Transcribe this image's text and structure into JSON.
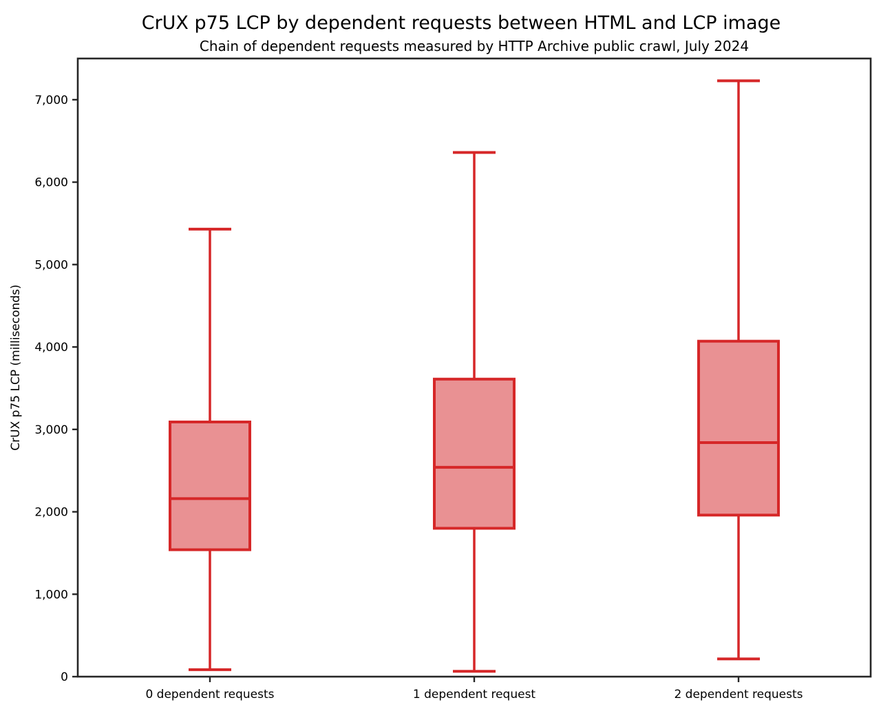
{
  "chart_data": {
    "type": "boxplot",
    "title": "CrUX p75 LCP by dependent requests between HTML and LCP image",
    "subtitle": "Chain of dependent requests measured by HTTP Archive public crawl, July 2024",
    "xlabel": "",
    "ylabel": "CrUX p75 LCP (milliseconds)",
    "ylim": [
      0,
      7500
    ],
    "grid": false,
    "legend": null,
    "yticks": [
      {
        "value": 0,
        "label": "0"
      },
      {
        "value": 1000,
        "label": "1,000"
      },
      {
        "value": 2000,
        "label": "2,000"
      },
      {
        "value": 3000,
        "label": "3,000"
      },
      {
        "value": 4000,
        "label": "4,000"
      },
      {
        "value": 5000,
        "label": "5,000"
      },
      {
        "value": 6000,
        "label": "6,000"
      },
      {
        "value": 7000,
        "label": "7,000"
      }
    ],
    "categories": [
      "0 dependent requests",
      "1 dependent request",
      "2 dependent requests"
    ],
    "series": [
      {
        "category": "0 dependent requests",
        "whisker_low": 85,
        "q1": 1540,
        "median": 2160,
        "q3": 3090,
        "whisker_high": 5430
      },
      {
        "category": "1 dependent request",
        "whisker_low": 65,
        "q1": 1800,
        "median": 2540,
        "q3": 3610,
        "whisker_high": 6360
      },
      {
        "category": "2 dependent requests",
        "whisker_low": 215,
        "q1": 1960,
        "median": 2840,
        "q3": 4070,
        "whisker_high": 7230
      }
    ],
    "colors": {
      "box_edge": "#d62728",
      "box_fill": "#e99193",
      "median": "#d62728",
      "whisker": "#d62728",
      "spine": "#262626",
      "text": "#000000",
      "background": "#ffffff"
    }
  }
}
